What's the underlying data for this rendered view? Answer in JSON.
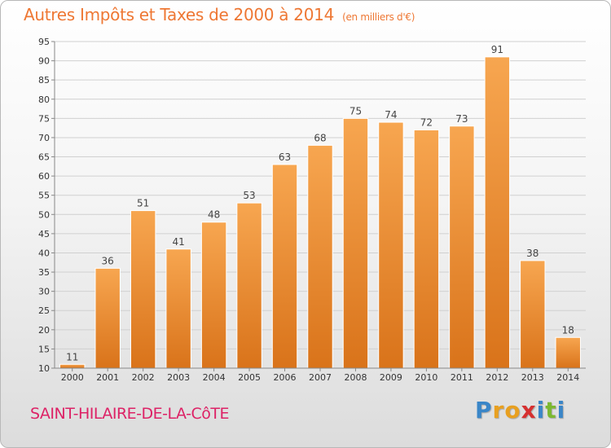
{
  "header": {
    "title": "Autres Impôts et Taxes de 2000 à 2014",
    "subtitle": "(en milliers d'€)"
  },
  "footer": {
    "commune": "SAINT-HILAIRE-DE-LA-CôTE",
    "logo_letters": [
      "P",
      "r",
      "o",
      "x",
      "i",
      "t",
      "i"
    ],
    "logo_colors": [
      "#3a86c8",
      "#e8a020",
      "#e8a020",
      "#d63030",
      "#3a86c8",
      "#7cb830",
      "#3a86c8"
    ]
  },
  "colors": {
    "bar_light": "#f7a650",
    "bar_dark": "#d9731a",
    "grid": "#d0d0d0",
    "axis": "#888888"
  },
  "chart_data": {
    "type": "bar",
    "title": "Autres Impôts et Taxes de 2000 à 2014",
    "subtitle": "(en milliers d'€)",
    "categories": [
      "2000",
      "2001",
      "2002",
      "2003",
      "2004",
      "2005",
      "2006",
      "2007",
      "2008",
      "2009",
      "2010",
      "2011",
      "2012",
      "2013",
      "2014"
    ],
    "values": [
      11,
      36,
      51,
      41,
      48,
      53,
      63,
      68,
      75,
      74,
      72,
      73,
      91,
      38,
      18
    ],
    "ylim": [
      10,
      95
    ],
    "yticks": [
      10,
      15,
      20,
      25,
      30,
      35,
      40,
      45,
      50,
      55,
      60,
      65,
      70,
      75,
      80,
      85,
      90,
      95
    ],
    "grid": true,
    "legend": "none"
  }
}
